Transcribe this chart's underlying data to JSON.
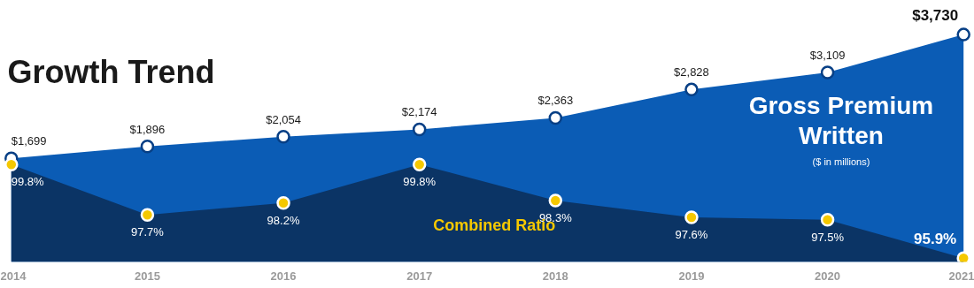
{
  "chart_data": {
    "type": "area",
    "title": "Growth Trend",
    "categories": [
      "2014",
      "2015",
      "2016",
      "2017",
      "2018",
      "2019",
      "2020",
      "2021"
    ],
    "series": [
      {
        "name": "Gross Premium Written",
        "color": "#0b5cb5",
        "values": [
          1699,
          1896,
          2054,
          2174,
          2363,
          2828,
          3109,
          3730
        ],
        "value_labels": [
          "$1,699",
          "$1,896",
          "$2,054",
          "$2,174",
          "$2,363",
          "$2,828",
          "$3,109",
          "$3,730"
        ]
      },
      {
        "name": "Combined Ratio",
        "color": "#0b3465",
        "axis": "y2",
        "values": [
          99.8,
          97.7,
          98.2,
          99.8,
          98.3,
          97.6,
          97.5,
          95.9
        ],
        "value_labels": [
          "99.8%",
          "97.7%",
          "98.2%",
          "99.8%",
          "98.3%",
          "97.6%",
          "97.5%",
          "95.9%"
        ]
      }
    ],
    "annotations": [
      "($ in millions)"
    ],
    "tick_labels": "x",
    "grid": false,
    "marker": "circle"
  }
}
